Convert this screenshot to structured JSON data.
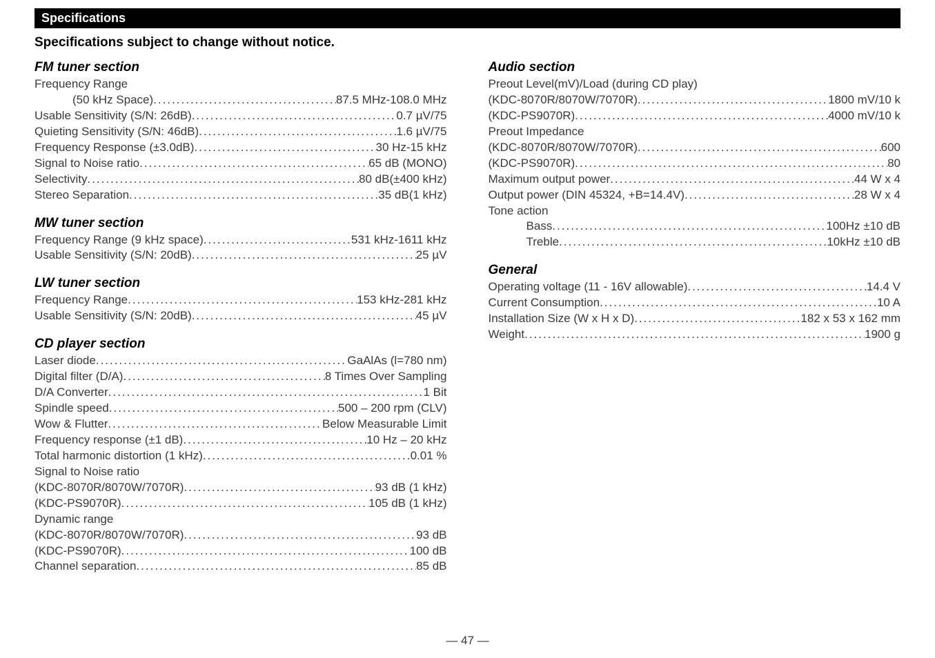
{
  "header": "Specifications",
  "subtitle": "Specifications subject to change without notice.",
  "page_number": "— 47 —",
  "left": [
    {
      "title": "FM tuner section",
      "rows": [
        {
          "label": "Frequency Range",
          "value": "",
          "novalue": true
        },
        {
          "label": "(50 kHz Space)",
          "value": "87.5 MHz-108.0 MHz",
          "indent": true
        },
        {
          "label": "Usable Sensitivity (S/N: 26dB)",
          "value": "0.7 µV/75"
        },
        {
          "label": "Quieting Sensitivity (S/N: 46dB)",
          "value": "1.6 µV/75"
        },
        {
          "label": "Frequency Response (±3.0dB)",
          "value": "30 Hz-15 kHz"
        },
        {
          "label": "Signal to Noise ratio ",
          "value": "65 dB (MONO)"
        },
        {
          "label": "Selectivity",
          "value": "   80 dB(±400 kHz)"
        },
        {
          "label": "Stereo Separation",
          "value": "35 dB(1 kHz)"
        }
      ]
    },
    {
      "title": "MW tuner section",
      "rows": [
        {
          "label": "Frequency Range (9 kHz space)",
          "value": "531 kHz-1611 kHz"
        },
        {
          "label": "Usable Sensitivity (S/N: 20dB)",
          "value": "25 µV"
        }
      ]
    },
    {
      "title": "LW tuner section",
      "rows": [
        {
          "label": "Frequency Range",
          "value": "153 kHz-281 kHz"
        },
        {
          "label": "Usable Sensitivity (S/N: 20dB)",
          "value": "45 µV"
        }
      ]
    },
    {
      "title": "CD player section",
      "rows": [
        {
          "label": "Laser diode",
          "value": "GaAlAs (l=780 nm)"
        },
        {
          "label": "Digital filter (D/A)",
          "value": "8 Times Over Sampling"
        },
        {
          "label": "D/A Converter",
          "value": "1 Bit"
        },
        {
          "label": "Spindle speed",
          "value": "500 – 200 rpm (CLV)"
        },
        {
          "label": "Wow & Flutter",
          "value": "Below Measurable Limit"
        },
        {
          "label": "Frequency response (±1 dB)",
          "value": "10 Hz – 20 kHz"
        },
        {
          "label": "Total harmonic distortion (1 kHz) ",
          "value": "0.01 %"
        },
        {
          "label": "Signal to Noise ratio",
          "value": "",
          "novalue": true
        },
        {
          "label": "(KDC-8070R/8070W/7070R)",
          "value": "93 dB (1 kHz)"
        },
        {
          "label": "(KDC-PS9070R)",
          "value": "105 dB (1 kHz)"
        },
        {
          "label": "Dynamic range",
          "value": "",
          "novalue": true
        },
        {
          "label": "(KDC-8070R/8070W/7070R) ",
          "value": "93 dB"
        },
        {
          "label": "(KDC-PS9070R)",
          "value": "100 dB"
        },
        {
          "label": "Channel separation",
          "value": "85 dB"
        }
      ]
    }
  ],
  "right": [
    {
      "title": "Audio section",
      "rows": [
        {
          "label": "Preout Level(mV)/Load (during CD play)",
          "value": "",
          "novalue": true
        },
        {
          "label": "(KDC-8070R/8070W/7070R)",
          "value": "1800 mV/10 k"
        },
        {
          "label": "(KDC-PS9070R) ",
          "value": "4000 mV/10 k"
        },
        {
          "label": "Preout Impedance",
          "value": "",
          "novalue": true
        },
        {
          "label": "(KDC-8070R/8070W/7070R) ",
          "value": "   600"
        },
        {
          "label": "(KDC-PS9070R) ",
          "value": "80"
        },
        {
          "label": "Maximum output power ",
          "value": "44 W x 4"
        },
        {
          "label": "Output power (DIN 45324, +B=14.4V)",
          "value": "28 W x 4"
        },
        {
          "label": "Tone action",
          "value": "",
          "novalue": true
        },
        {
          "label": "Bass ",
          "value": "100Hz ±10 dB",
          "indent": true
        },
        {
          "label": "Treble ",
          "value": "10kHz ±10 dB",
          "indent": true
        }
      ]
    },
    {
      "title": "General",
      "rows": [
        {
          "label": "Operating voltage (11 - 16V allowable)",
          "value": "14.4 V"
        },
        {
          "label": "Current Consumption",
          "value": "10 A"
        },
        {
          "label": "Installation Size  (W x H x D) ",
          "value": "182 x 53 x 162 mm"
        },
        {
          "label": "Weight",
          "value": "1900 g"
        }
      ]
    }
  ]
}
